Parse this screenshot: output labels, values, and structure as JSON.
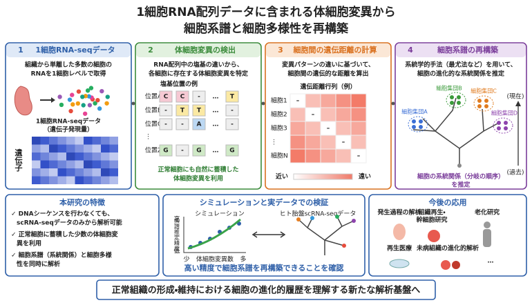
{
  "title": {
    "line1": "1細胞RNA配列データに含まれる体細胞変異から",
    "line2": "細胞系譜と細胞多様性を再構築"
  },
  "panels": [
    {
      "number": "1",
      "heading": "1細胞RNA-seqデータ",
      "text": [
        "組織から単離した多数の細胞の",
        "RNAを1細胞レベルで取得"
      ],
      "caption": [
        "1細胞RNA-seqデータ",
        "（遺伝子発現量）"
      ],
      "axis_label": "遺伝子"
    },
    {
      "number": "2",
      "heading": "体細胞変異の検出",
      "text": [
        "RNA配列中の塩基の違いから、",
        "各細胞に存在する体細胞変異を特定"
      ],
      "table_title": "塩基位置の例",
      "rows": [
        {
          "label": "位置A",
          "cells": [
            "C",
            "C",
            "-",
            "…",
            "T"
          ]
        },
        {
          "label": "位置B",
          "cells": [
            "-",
            "T",
            "T",
            "…",
            "-"
          ]
        },
        {
          "label": "位置C",
          "cells": [
            "-",
            "-",
            "A",
            "…",
            "-"
          ]
        },
        {
          "label": "⋮"
        },
        {
          "label": "位置Z",
          "cells": [
            "G",
            "-",
            "G",
            "…",
            "G"
          ]
        }
      ],
      "footer": [
        "正常細胞にも自然に蓄積した",
        "体細胞変異を利用"
      ]
    },
    {
      "number": "3",
      "heading": "細胞間の遺伝距離の計算",
      "text": [
        "変異パターンの違いに基づいて、",
        "細胞間の遺伝的な距離を算出"
      ],
      "matrix_title": "遺伝距離行列（例）",
      "row_labels": [
        "細胞1",
        "細胞2",
        "細胞3",
        "⋮",
        "細胞N"
      ],
      "diagonal": "–",
      "scale": [
        "近い",
        "遠い"
      ]
    },
    {
      "number": "4",
      "heading": "細胞系譜の再構築",
      "text": [
        "系統学的手法（最尤法など）を用いて、",
        "細胞の進化的な系統関係を推定"
      ],
      "groups": [
        "細胞集団A",
        "細胞集団B",
        "細胞集団C",
        "細胞集団D"
      ],
      "time": [
        "(現在)",
        "(過去)"
      ],
      "footer": [
        "細胞の系統関係（分岐の順序）",
        "を推定"
      ]
    }
  ],
  "features": {
    "heading": "本研究の特徴",
    "items": [
      [
        "✓ DNAシーケンスを行わなくても、",
        "scRNA-seqデータのみから解析可能"
      ],
      [
        "✓ 正常細胞に蓄積した少数の体細胞変",
        "異を利用"
      ],
      [
        "✓ 細胞系譜（系統関係）と細胞多様",
        "性を同時に解析"
      ]
    ]
  },
  "validation": {
    "heading": "シミュレーションと実データでの検証",
    "sim_label": "シミュレーション",
    "y_label": "系譜推定精度",
    "y_high": "高",
    "y_low": "低",
    "x_low": "少",
    "x_label": "体細胞変異数",
    "x_high": "多",
    "data_label": "ヒト胎盤scRNA-seqデータ",
    "conclusion": "高い精度で細胞系譜を再構築できることを確認"
  },
  "applications": {
    "heading": "今後の応用",
    "items": [
      [
        "発生過程の解析"
      ],
      [
        "組織再生・",
        "幹細胞研究"
      ],
      [
        "老化研究"
      ],
      [
        "再生医療"
      ],
      [
        "未病組織の進化的解析"
      ],
      [
        "…"
      ]
    ]
  },
  "banner": "正常組織の形成・維持における細胞の進化的履歴を理解する新たな解析基盤へ"
}
